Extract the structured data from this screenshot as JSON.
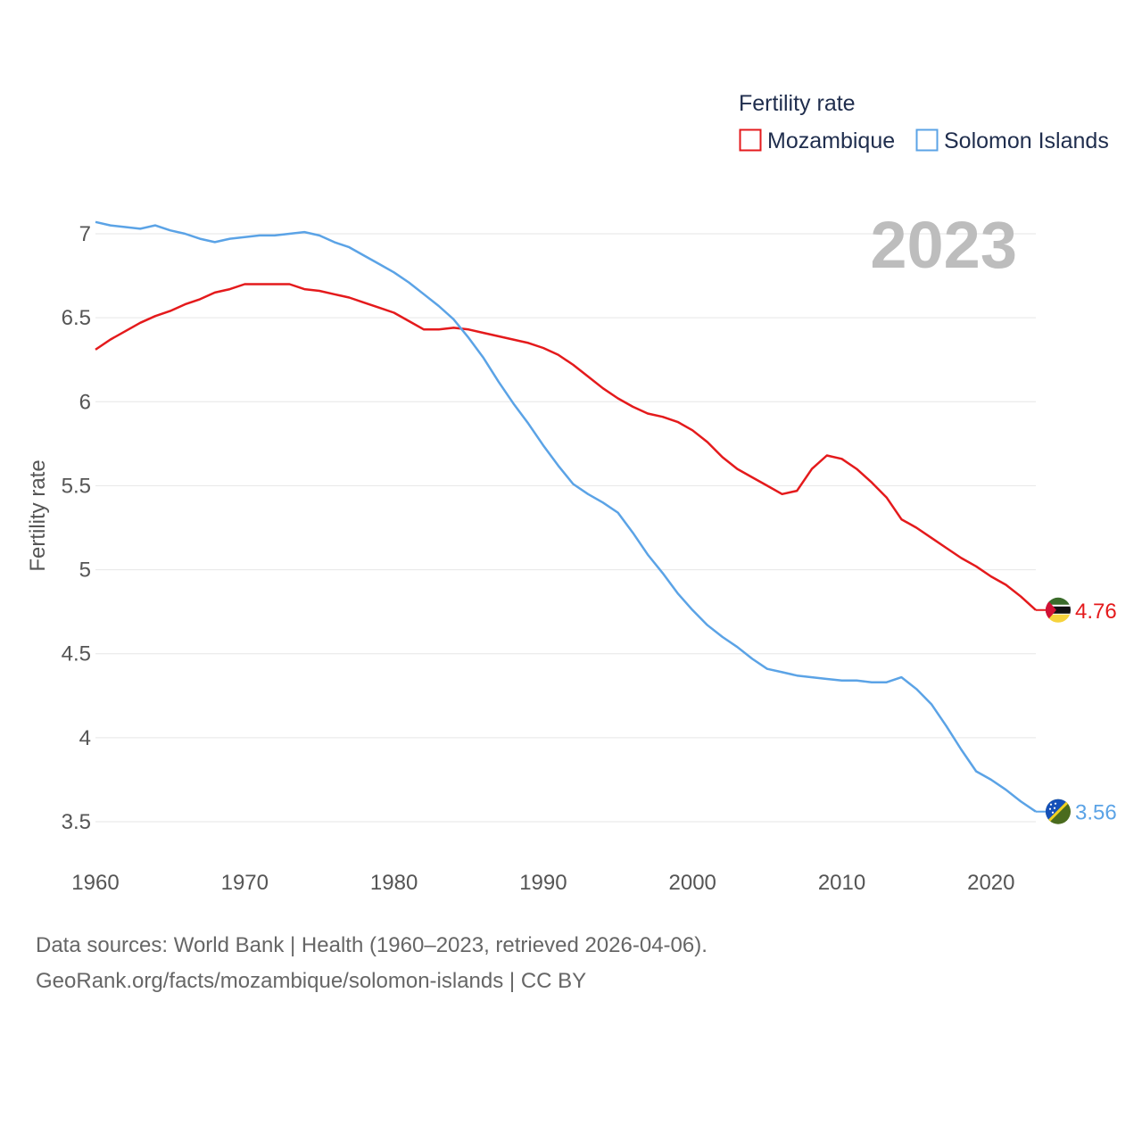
{
  "chart_data": {
    "type": "line",
    "title": "Fertility rate",
    "ylabel": "Fertility rate",
    "xlabel": "",
    "year_label": "2023",
    "xlim": [
      1960,
      2023
    ],
    "ylim": [
      3.5,
      7
    ],
    "x_ticks": [
      "1960",
      "1970",
      "1980",
      "1990",
      "2000",
      "2010",
      "2020"
    ],
    "y_ticks": [
      "3.5",
      "4",
      "4.5",
      "5",
      "5.5",
      "6",
      "6.5",
      "7"
    ],
    "grid": true,
    "legend_position": "top-right",
    "x": [
      1960,
      1961,
      1962,
      1963,
      1964,
      1965,
      1966,
      1967,
      1968,
      1969,
      1970,
      1971,
      1972,
      1973,
      1974,
      1975,
      1976,
      1977,
      1978,
      1979,
      1980,
      1981,
      1982,
      1983,
      1984,
      1985,
      1986,
      1987,
      1988,
      1989,
      1990,
      1991,
      1992,
      1993,
      1994,
      1995,
      1996,
      1997,
      1998,
      1999,
      2000,
      2001,
      2002,
      2003,
      2004,
      2005,
      2006,
      2007,
      2008,
      2009,
      2010,
      2011,
      2012,
      2013,
      2014,
      2015,
      2016,
      2017,
      2018,
      2019,
      2020,
      2021,
      2022,
      2023
    ],
    "series": [
      {
        "name": "Mozambique",
        "color": "#e41a1c",
        "end_label": "4.76",
        "values": [
          6.31,
          6.37,
          6.42,
          6.47,
          6.51,
          6.54,
          6.58,
          6.61,
          6.65,
          6.67,
          6.7,
          6.7,
          6.7,
          6.7,
          6.67,
          6.66,
          6.64,
          6.62,
          6.59,
          6.56,
          6.53,
          6.48,
          6.43,
          6.43,
          6.44,
          6.43,
          6.41,
          6.39,
          6.37,
          6.35,
          6.32,
          6.28,
          6.22,
          6.15,
          6.08,
          6.02,
          5.97,
          5.93,
          5.91,
          5.88,
          5.83,
          5.76,
          5.67,
          5.6,
          5.55,
          5.5,
          5.45,
          5.47,
          5.6,
          5.68,
          5.66,
          5.6,
          5.52,
          5.43,
          5.3,
          5.25,
          5.19,
          5.13,
          5.07,
          5.02,
          4.96,
          4.91,
          4.84,
          4.76
        ]
      },
      {
        "name": "Solomon Islands",
        "color": "#5ba3e6",
        "end_label": "3.56",
        "values": [
          7.07,
          7.05,
          7.04,
          7.03,
          7.05,
          7.02,
          7.0,
          6.97,
          6.95,
          6.97,
          6.98,
          6.99,
          6.99,
          7.0,
          7.01,
          6.99,
          6.95,
          6.92,
          6.87,
          6.82,
          6.77,
          6.71,
          6.64,
          6.57,
          6.49,
          6.38,
          6.26,
          6.12,
          5.99,
          5.87,
          5.74,
          5.62,
          5.51,
          5.45,
          5.4,
          5.34,
          5.22,
          5.09,
          4.98,
          4.86,
          4.76,
          4.67,
          4.6,
          4.54,
          4.47,
          4.41,
          4.39,
          4.37,
          4.36,
          4.35,
          4.34,
          4.34,
          4.33,
          4.33,
          4.36,
          4.29,
          4.2,
          4.07,
          3.93,
          3.8,
          3.75,
          3.69,
          3.62,
          3.56
        ]
      }
    ]
  },
  "source": {
    "line1": "Data sources: World Bank | Health (1960–2023, retrieved 2026-04-06).",
    "line2": "GeoRank.org/facts/mozambique/solomon-islands | CC BY"
  }
}
